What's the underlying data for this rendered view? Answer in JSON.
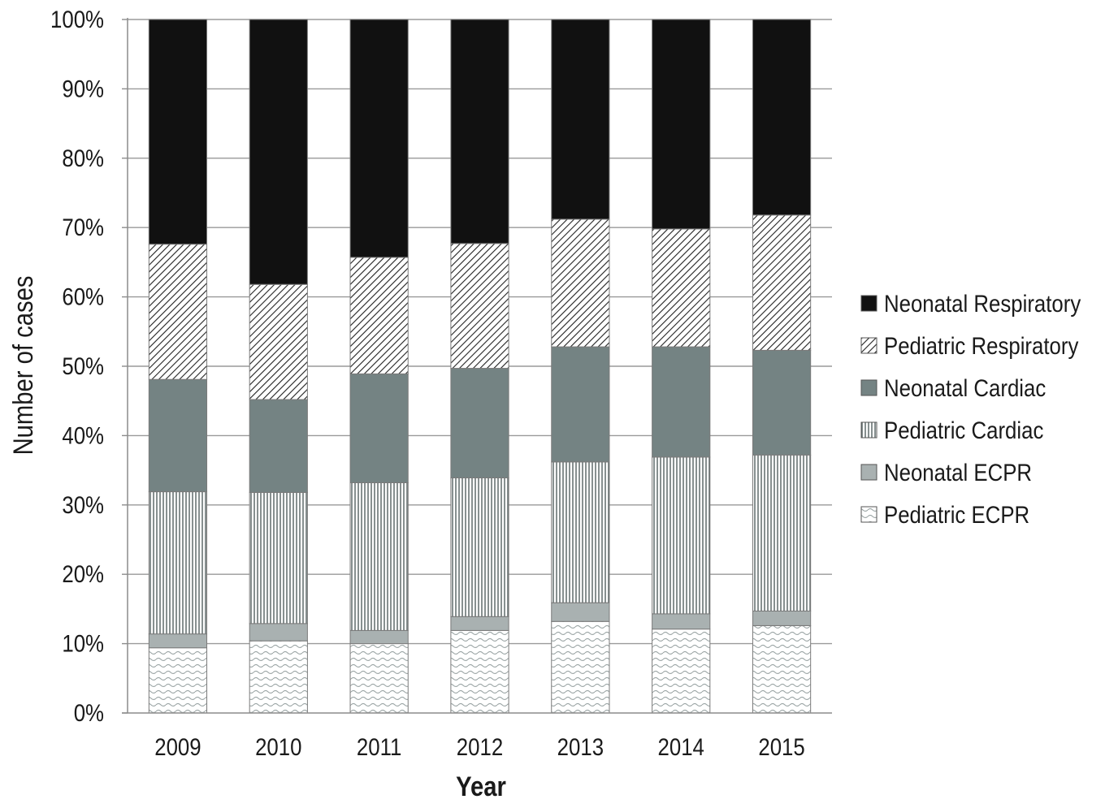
{
  "chart_data": {
    "type": "bar",
    "stacked": true,
    "percent_stacked": true,
    "title": "",
    "xlabel": "Year",
    "ylabel": "Number of cases",
    "ylim": [
      0,
      100
    ],
    "y_ticks": [
      "0%",
      "10%",
      "20%",
      "30%",
      "40%",
      "50%",
      "60%",
      "70%",
      "80%",
      "90%",
      "100%"
    ],
    "grid": true,
    "legend_position": "right",
    "categories": [
      "2009",
      "2010",
      "2011",
      "2012",
      "2013",
      "2014",
      "2015"
    ],
    "series": [
      {
        "name": "Pediatric ECPR",
        "pattern": "wave",
        "color": "#d9d9d9",
        "values": [
          9.4,
          10.4,
          10.0,
          11.9,
          13.2,
          12.1,
          12.6
        ]
      },
      {
        "name": "Neonatal ECPR",
        "pattern": "solid",
        "color": "#a9b1b1",
        "values": [
          2.0,
          2.5,
          1.9,
          2.0,
          2.7,
          2.2,
          2.1
        ]
      },
      {
        "name": "Pediatric Cardiac",
        "pattern": "vertical-lines",
        "color": "#8a9595",
        "values": [
          20.5,
          18.9,
          21.3,
          20.0,
          20.3,
          22.6,
          22.5
        ]
      },
      {
        "name": "Neonatal Cardiac",
        "pattern": "solid",
        "color": "#748383",
        "values": [
          16.2,
          13.4,
          15.7,
          15.8,
          16.6,
          15.9,
          15.1
        ]
      },
      {
        "name": "Pediatric Respiratory",
        "pattern": "diagonal-hatch",
        "color": "#222222",
        "values": [
          19.5,
          16.6,
          16.8,
          18.0,
          18.4,
          17.0,
          19.5
        ]
      },
      {
        "name": "Neonatal Respiratory",
        "pattern": "solid",
        "color": "#111111",
        "values": [
          32.4,
          38.2,
          34.3,
          32.3,
          28.8,
          30.2,
          28.2
        ]
      }
    ],
    "legend_order": [
      "Neonatal Respiratory",
      "Pediatric Respiratory",
      "Neonatal Cardiac",
      "Pediatric Cardiac",
      "Neonatal ECPR",
      "Pediatric ECPR"
    ]
  }
}
